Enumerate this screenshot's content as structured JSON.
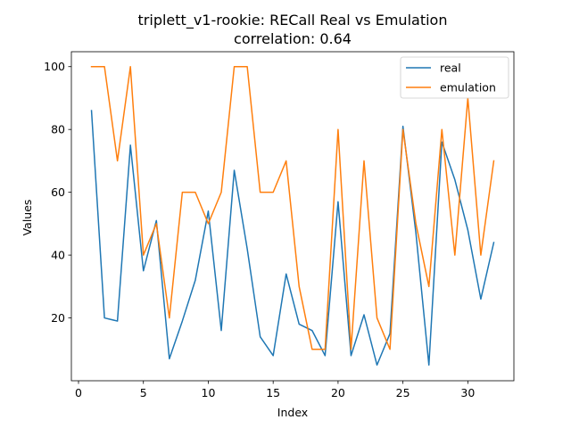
{
  "chart_data": {
    "type": "line",
    "title": "triplett_v1-rookie: RECall Real vs Emulation",
    "subtitle": "correlation: 0.64",
    "xlabel": "Index",
    "ylabel": "Values",
    "xlim": [
      -0.55,
      33.55
    ],
    "ylim": [
      0,
      104.75
    ],
    "xticks": [
      "0",
      "5",
      "10",
      "15",
      "20",
      "25",
      "30"
    ],
    "yticks": [
      "20",
      "40",
      "60",
      "80",
      "100"
    ],
    "legend_position": "top-right",
    "grid": false,
    "x": [
      1,
      2,
      3,
      4,
      5,
      6,
      7,
      8,
      9,
      10,
      11,
      12,
      13,
      14,
      15,
      16,
      17,
      18,
      19,
      20,
      21,
      22,
      23,
      24,
      25,
      26,
      27,
      28,
      29,
      30,
      31,
      32
    ],
    "series": [
      {
        "name": "real",
        "color": "#1f77b4",
        "values": [
          86,
          20,
          19,
          75,
          35,
          51,
          7,
          19,
          32,
          54,
          16,
          67,
          42,
          14,
          8,
          34,
          18,
          16,
          8,
          57,
          8,
          21,
          5,
          15,
          81,
          47,
          5,
          76,
          64,
          48,
          26,
          44
        ]
      },
      {
        "name": "emulation",
        "color": "#ff7f0e",
        "values": [
          100,
          100,
          70,
          100,
          40,
          50,
          20,
          60,
          60,
          50,
          60,
          100,
          100,
          60,
          60,
          70,
          30,
          10,
          10,
          80,
          10,
          70,
          20,
          10,
          80,
          50,
          30,
          80,
          40,
          90,
          40,
          70
        ]
      }
    ]
  }
}
